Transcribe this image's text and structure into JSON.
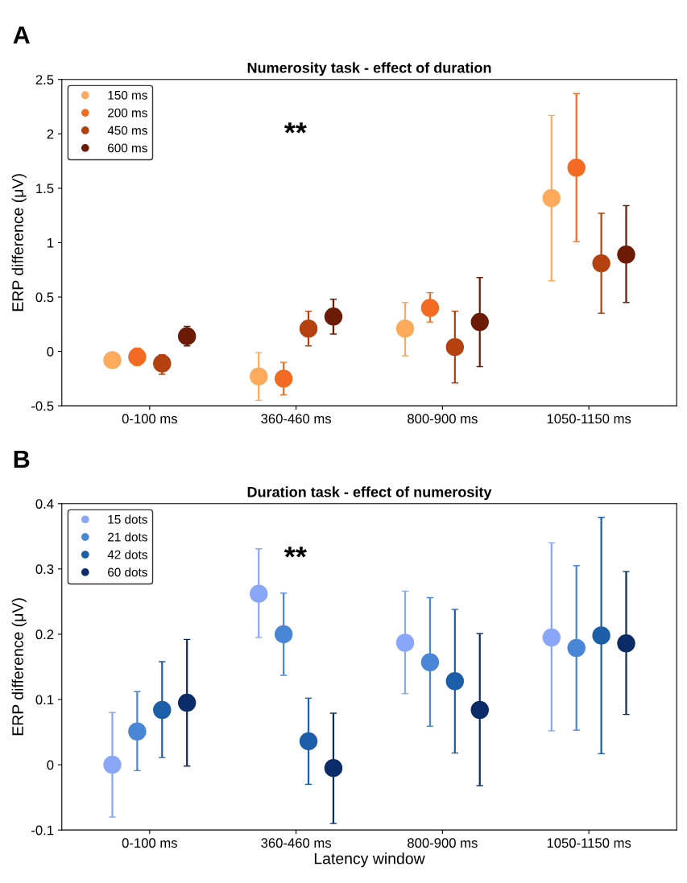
{
  "chart_data": [
    {
      "type": "scatter",
      "title": "Numerosity task - effect of duration",
      "ylabel": "ERP difference (μV)",
      "categories": [
        "0-100 ms",
        "360-460 ms",
        "800-900 ms",
        "1050-1150 ms"
      ],
      "ylim": [
        -0.5,
        2.5
      ],
      "yticks": [
        -0.5,
        0,
        0.5,
        1,
        1.5,
        2,
        2.5
      ],
      "marker": "circle",
      "grid": false,
      "legend": "top left",
      "annotations": [
        "A",
        "**"
      ],
      "series": [
        {
          "name": "150 ms",
          "color": "#fdaa5c",
          "values": [
            -0.08,
            -0.23,
            0.21,
            1.41
          ],
          "errors": [
            [
              -0.14,
              -0.02
            ],
            [
              -0.45,
              -0.01
            ],
            [
              -0.04,
              0.45
            ],
            [
              0.65,
              2.17
            ]
          ]
        },
        {
          "name": "200 ms",
          "color": "#f36b22",
          "values": [
            -0.05,
            -0.25,
            0.4,
            1.69
          ],
          "errors": [
            [
              -0.13,
              0.03
            ],
            [
              -0.4,
              -0.1
            ],
            [
              0.27,
              0.54
            ],
            [
              1.01,
              2.37
            ]
          ]
        },
        {
          "name": "450 ms",
          "color": "#b4410f",
          "values": [
            -0.11,
            0.21,
            0.04,
            0.81
          ],
          "errors": [
            [
              -0.21,
              -0.03
            ],
            [
              0.05,
              0.37
            ],
            [
              -0.29,
              0.37
            ],
            [
              0.35,
              1.27
            ]
          ]
        },
        {
          "name": "600 ms",
          "color": "#6d1a06",
          "values": [
            0.14,
            0.32,
            0.27,
            0.89
          ],
          "errors": [
            [
              0.05,
              0.23
            ],
            [
              0.16,
              0.48
            ],
            [
              -0.14,
              0.68
            ],
            [
              0.45,
              1.34
            ]
          ]
        }
      ]
    },
    {
      "type": "scatter",
      "title": "Duration task - effect of numerosity",
      "ylabel": "ERP difference (μV)",
      "xlabel": "Latency window",
      "categories": [
        "0-100 ms",
        "360-460 ms",
        "800-900 ms",
        "1050-1150 ms"
      ],
      "ylim": [
        -0.1,
        0.4
      ],
      "yticks": [
        -0.1,
        0,
        0.1,
        0.2,
        0.3,
        0.4
      ],
      "marker": "circle",
      "grid": false,
      "legend": "top left",
      "annotations": [
        "B",
        "**"
      ],
      "series": [
        {
          "name": "15 dots",
          "color": "#8aa6f8",
          "values": [
            0.0,
            0.262,
            0.187,
            0.195
          ],
          "errors": [
            [
              -0.08,
              0.08
            ],
            [
              0.195,
              0.331
            ],
            [
              0.109,
              0.266
            ],
            [
              0.052,
              0.34
            ]
          ]
        },
        {
          "name": "21 dots",
          "color": "#4a86d8",
          "values": [
            0.051,
            0.2,
            0.157,
            0.179
          ],
          "errors": [
            [
              -0.009,
              0.112
            ],
            [
              0.137,
              0.263
            ],
            [
              0.059,
              0.256
            ],
            [
              0.053,
              0.305
            ]
          ]
        },
        {
          "name": "42 dots",
          "color": "#1c5fa8",
          "values": [
            0.084,
            0.036,
            0.128,
            0.198
          ],
          "errors": [
            [
              0.011,
              0.158
            ],
            [
              -0.03,
              0.102
            ],
            [
              0.018,
              0.238
            ],
            [
              0.017,
              0.379
            ]
          ]
        },
        {
          "name": "60 dots",
          "color": "#0b2c68",
          "values": [
            0.095,
            -0.005,
            0.084,
            0.186
          ],
          "errors": [
            [
              -0.002,
              0.192
            ],
            [
              -0.09,
              0.079
            ],
            [
              -0.032,
              0.201
            ],
            [
              0.077,
              0.296
            ]
          ]
        }
      ]
    }
  ]
}
